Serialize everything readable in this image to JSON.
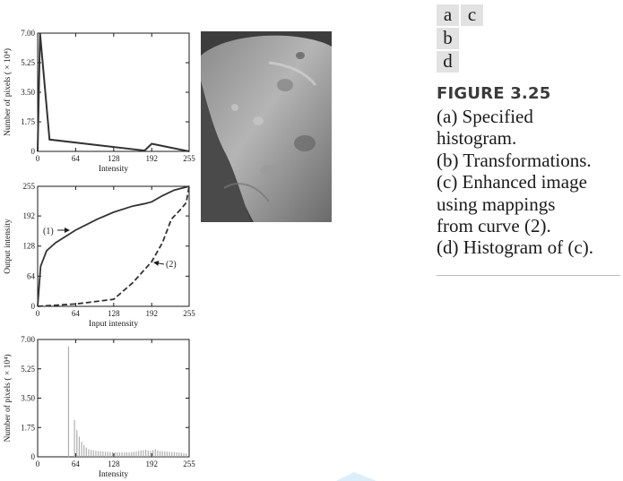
{
  "panel_labels": [
    "a",
    "c",
    "b",
    "d"
  ],
  "figure_label": "FIGURE 3.25",
  "caption_lines": [
    "(a) Specified",
    "histogram.",
    "(b) Transformations.",
    "(c) Enhanced image",
    "using mappings",
    "from curve (2).",
    "(d) Histogram of (c)."
  ],
  "image": {
    "description_name": "enhanced-moon-image"
  },
  "colors": {
    "axis": "#1a1a1a",
    "curve": "#333333",
    "hist_bars": "#b0b0b0",
    "label_bg": "#e2e2e2"
  },
  "chart_data": [
    {
      "id": "a",
      "type": "line",
      "title": "",
      "xlabel": "Intensity",
      "ylabel": "Number of pixels ( × 10⁴)",
      "xlim": [
        0,
        255
      ],
      "ylim": [
        0,
        7.0
      ],
      "xticks": [
        0,
        64,
        128,
        192,
        255
      ],
      "yticks": [
        0,
        1.75,
        3.5,
        5.25,
        7.0
      ],
      "ytick_labels": [
        "0",
        "1.75",
        "3.50",
        "5.25",
        "7.00"
      ],
      "series": [
        {
          "x": [
            0,
            4,
            20,
            180,
            192,
            255
          ],
          "y": [
            0,
            7.0,
            0.7,
            0.05,
            0.45,
            0
          ]
        }
      ]
    },
    {
      "id": "b",
      "type": "line",
      "title": "",
      "xlabel": "Input intensity",
      "ylabel": "Output intensity",
      "xlim": [
        0,
        255
      ],
      "ylim": [
        0,
        255
      ],
      "xticks": [
        0,
        64,
        128,
        192,
        255
      ],
      "yticks": [
        0,
        64,
        128,
        192,
        255
      ],
      "annotations": [
        "(1)",
        "(2)"
      ],
      "series": [
        {
          "name": "(1)",
          "style": "solid",
          "x": [
            0,
            5,
            15,
            30,
            64,
            100,
            128,
            160,
            180,
            192,
            210,
            230,
            255
          ],
          "y": [
            0,
            85,
            118,
            135,
            162,
            185,
            200,
            213,
            218,
            222,
            235,
            247,
            255
          ]
        },
        {
          "name": "(2)",
          "style": "dashed",
          "x": [
            0,
            64,
            128,
            160,
            192,
            210,
            225,
            240,
            250,
            255
          ],
          "y": [
            0,
            5,
            15,
            50,
            95,
            135,
            185,
            205,
            220,
            255
          ]
        }
      ]
    },
    {
      "id": "d",
      "type": "bar",
      "title": "",
      "xlabel": "Intensity",
      "ylabel": "Number of pixels ( × 10⁴)",
      "xlim": [
        0,
        255
      ],
      "ylim": [
        0,
        7.0
      ],
      "xticks": [
        0,
        64,
        128,
        192,
        255
      ],
      "yticks": [
        0,
        1.75,
        3.5,
        5.25,
        7.0
      ],
      "ytick_labels": [
        "0",
        "1.75",
        "3.50",
        "5.25",
        "7.00"
      ],
      "x": [
        52,
        62,
        66,
        70,
        74,
        78,
        82,
        86,
        90,
        94,
        98,
        102,
        106,
        110,
        114,
        118,
        122,
        126,
        130,
        134,
        138,
        142,
        146,
        150,
        154,
        158,
        162,
        166,
        170,
        174,
        178,
        182,
        186,
        190,
        194,
        198,
        202,
        206,
        210,
        214,
        218,
        222,
        226,
        230,
        234,
        238,
        242,
        246,
        250
      ],
      "values": [
        6.6,
        2.2,
        1.6,
        1.2,
        0.9,
        0.7,
        0.55,
        0.45,
        0.4,
        0.38,
        0.36,
        0.34,
        0.33,
        0.32,
        0.3,
        0.3,
        0.28,
        0.28,
        0.27,
        0.27,
        0.26,
        0.26,
        0.26,
        0.27,
        0.27,
        0.28,
        0.3,
        0.32,
        0.35,
        0.38,
        0.4,
        0.42,
        0.38,
        0.35,
        0.4,
        0.45,
        0.38,
        0.34,
        0.33,
        0.32,
        0.3,
        0.3,
        0.28,
        0.28,
        0.27,
        0.26,
        0.25,
        0.22,
        0.2
      ]
    }
  ]
}
